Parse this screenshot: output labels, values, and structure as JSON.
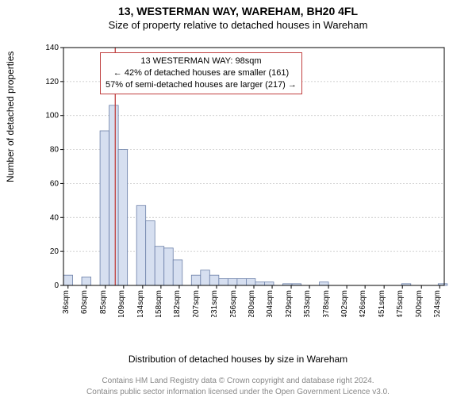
{
  "title": "13, WESTERMAN WAY, WAREHAM, BH20 4FL",
  "subtitle": "Size of property relative to detached houses in Wareham",
  "ylabel": "Number of detached properties",
  "xlabel": "Distribution of detached houses by size in Wareham",
  "footer_line1": "Contains HM Land Registry data © Crown copyright and database right 2024.",
  "footer_line2": "Contains public sector information licensed under the Open Government Licence v3.0.",
  "annotation": {
    "line1": "13 WESTERMAN WAY: 98sqm",
    "line2": "← 42% of detached houses are smaller (161)",
    "line3": "57% of semi-detached houses are larger (217) →",
    "border_color": "#c04040"
  },
  "chart": {
    "type": "histogram",
    "background_color": "#ffffff",
    "grid_color": "#bfbfbf",
    "axis_color": "#000000",
    "tick_font_size": 10,
    "bar_fill": "#d6dff0",
    "bar_stroke": "#6b7fa8",
    "marker_line_color": "#c04040",
    "ylim": [
      0,
      140
    ],
    "ytick_step": 20,
    "x_ticks": [
      "36sqm",
      "60sqm",
      "85sqm",
      "109sqm",
      "134sqm",
      "158sqm",
      "182sqm",
      "207sqm",
      "231sqm",
      "256sqm",
      "280sqm",
      "304sqm",
      "329sqm",
      "353sqm",
      "378sqm",
      "402sqm",
      "426sqm",
      "451sqm",
      "475sqm",
      "500sqm",
      "524sqm"
    ],
    "x_min": 30,
    "x_max": 530,
    "bin_width": 12,
    "bins_start": 30,
    "marker_x": 98,
    "values": [
      6,
      0,
      5,
      0,
      91,
      106,
      80,
      0,
      47,
      38,
      23,
      22,
      15,
      0,
      6,
      9,
      6,
      4,
      4,
      4,
      4,
      2,
      2,
      0,
      1,
      1,
      0,
      0,
      2,
      0,
      0,
      0,
      0,
      0,
      0,
      0,
      0,
      1,
      0,
      0,
      0,
      1
    ]
  }
}
